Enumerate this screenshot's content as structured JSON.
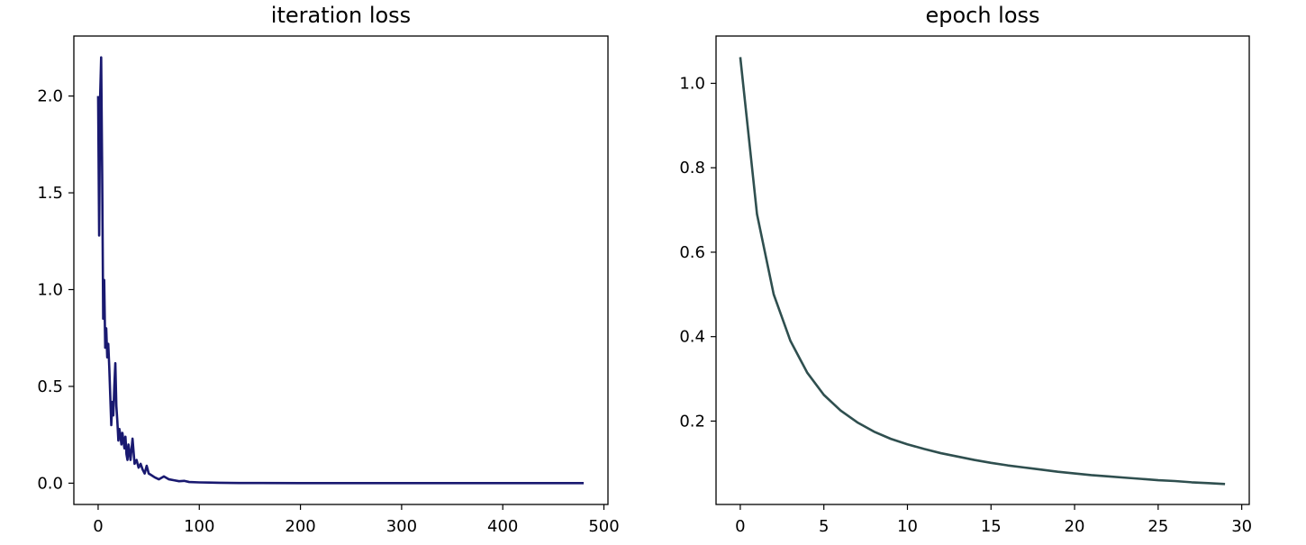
{
  "chart_data": [
    {
      "type": "line",
      "title": "iteration loss",
      "xlabel": "",
      "ylabel": "",
      "xlim": [
        -24,
        504
      ],
      "ylim": [
        -0.11,
        2.31
      ],
      "xticks": [
        0,
        100,
        200,
        300,
        400,
        500
      ],
      "xtick_labels": [
        "0",
        "100",
        "200",
        "300",
        "400",
        "500"
      ],
      "yticks": [
        0.0,
        0.5,
        1.0,
        1.5,
        2.0
      ],
      "ytick_labels": [
        "0.0",
        "0.5",
        "1.0",
        "1.5",
        "2.0"
      ],
      "grid": false,
      "color": "#191970",
      "series": [
        {
          "x": [
            0,
            1,
            2,
            3,
            4,
            5,
            6,
            7,
            8,
            9,
            10,
            11,
            12,
            13,
            14,
            15,
            16,
            17,
            18,
            19,
            20,
            21,
            22,
            23,
            24,
            25,
            26,
            27,
            28,
            29,
            30,
            32,
            34,
            36,
            38,
            40,
            42,
            44,
            46,
            48,
            50,
            53,
            56,
            60,
            65,
            70,
            75,
            80,
            85,
            90,
            100,
            110,
            120,
            140,
            160,
            200,
            250,
            300,
            350,
            400,
            450,
            480
          ],
          "y": [
            2.0,
            1.28,
            2.0,
            2.2,
            1.6,
            0.85,
            1.05,
            0.7,
            0.8,
            0.65,
            0.72,
            0.6,
            0.45,
            0.3,
            0.42,
            0.35,
            0.5,
            0.62,
            0.4,
            0.32,
            0.22,
            0.28,
            0.25,
            0.2,
            0.26,
            0.22,
            0.18,
            0.24,
            0.15,
            0.12,
            0.2,
            0.12,
            0.23,
            0.1,
            0.12,
            0.08,
            0.1,
            0.07,
            0.05,
            0.09,
            0.05,
            0.04,
            0.03,
            0.02,
            0.035,
            0.02,
            0.015,
            0.01,
            0.012,
            0.006,
            0.004,
            0.003,
            0.002,
            0.001,
            0.001,
            0.0,
            0.0,
            0.0,
            0.0,
            0.0,
            0.0,
            0.0
          ]
        }
      ]
    },
    {
      "type": "line",
      "title": "epoch loss",
      "xlabel": "",
      "ylabel": "",
      "xlim": [
        -1.45,
        30.45
      ],
      "ylim": [
        0.0025,
        1.112
      ],
      "xticks": [
        0,
        5,
        10,
        15,
        20,
        25,
        30
      ],
      "xtick_labels": [
        "0",
        "5",
        "10",
        "15",
        "20",
        "25",
        "30"
      ],
      "yticks": [
        0.2,
        0.4,
        0.6,
        0.8,
        1.0
      ],
      "ytick_labels": [
        "0.2",
        "0.4",
        "0.6",
        "0.8",
        "1.0"
      ],
      "grid": false,
      "color": "#2f4f4f",
      "series": [
        {
          "x": [
            0,
            1,
            2,
            3,
            4,
            5,
            6,
            7,
            8,
            9,
            10,
            11,
            12,
            13,
            14,
            15,
            16,
            17,
            18,
            19,
            20,
            21,
            22,
            23,
            24,
            25,
            26,
            27,
            28,
            29
          ],
          "y": [
            1.062,
            0.69,
            0.5,
            0.39,
            0.315,
            0.262,
            0.225,
            0.197,
            0.175,
            0.158,
            0.145,
            0.134,
            0.124,
            0.116,
            0.108,
            0.101,
            0.095,
            0.09,
            0.085,
            0.08,
            0.076,
            0.072,
            0.069,
            0.066,
            0.063,
            0.06,
            0.058,
            0.055,
            0.053,
            0.051
          ]
        }
      ]
    }
  ]
}
